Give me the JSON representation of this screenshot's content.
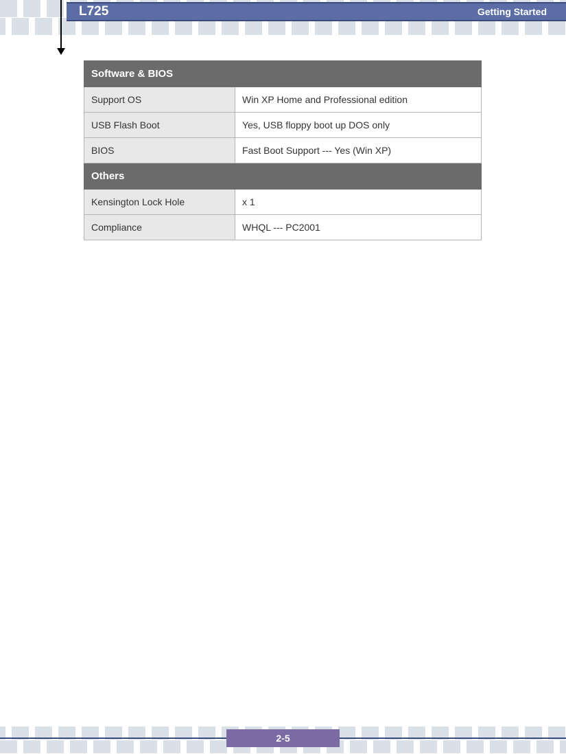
{
  "header": {
    "title": "L725",
    "section": "Getting  Started"
  },
  "table": {
    "sections": [
      {
        "header": "Software & BIOS",
        "rows": [
          {
            "label": "Support OS",
            "value": "Win XP Home and Professional edition"
          },
          {
            "label": "USB Flash Boot",
            "value": "Yes, USB floppy boot up DOS only"
          },
          {
            "label": "BIOS",
            "value": "Fast Boot Support --- Yes (Win XP)"
          }
        ]
      },
      {
        "header": "Others",
        "rows": [
          {
            "label": "Kensington Lock Hole",
            "value": "x 1"
          },
          {
            "label": "Compliance",
            "value": "WHQL --- PC2001"
          }
        ]
      }
    ]
  },
  "page_number": "2-5",
  "colors": {
    "header_bg": "#5c6da5",
    "header_border": "#3a4a7a",
    "section_header_bg": "#6b6b6b",
    "label_bg": "#e8e8e8",
    "square_bg": "#dae0e8",
    "page_num_bg": "#7a6ba5"
  }
}
